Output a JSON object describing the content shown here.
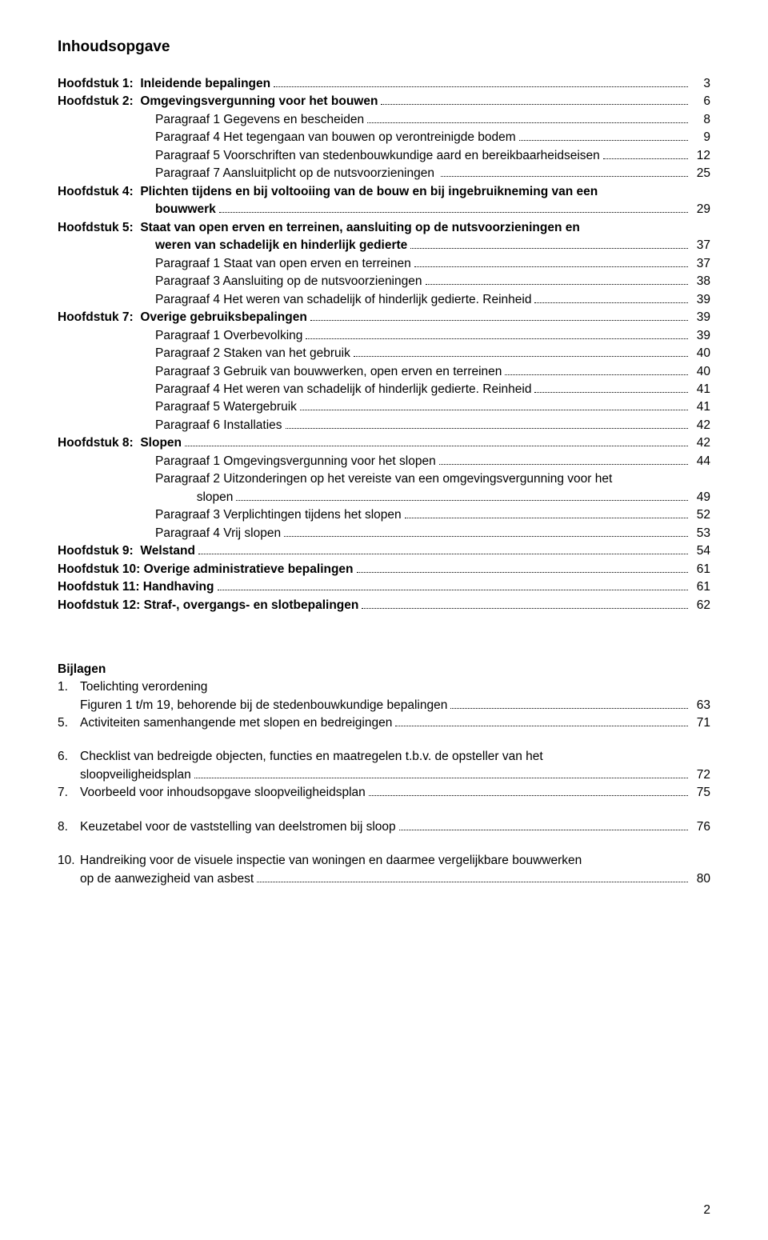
{
  "title": "Inhoudsopgave",
  "toc": [
    {
      "label": "Hoofdstuk 1:  ",
      "bold": true,
      "text": "Inleidende bepalingen",
      "tbold": true,
      "page": "3"
    },
    {
      "label": "Hoofdstuk 2:  ",
      "bold": true,
      "text": "Omgevingsvergunning voor het bouwen",
      "tbold": true,
      "page": "6"
    },
    {
      "label": "",
      "indent": true,
      "text": "Paragraaf 1 Gegevens en bescheiden",
      "page": "8"
    },
    {
      "label": "",
      "indent": true,
      "text": "Paragraaf 4 Het tegengaan van bouwen op verontreinigde bodem",
      "page": "9"
    },
    {
      "label": "",
      "indent": true,
      "text": "Paragraaf 5 Voorschriften van stedenbouwkundige aard en bereikbaarheidseisen",
      "page": "12"
    },
    {
      "label": "",
      "indent": true,
      "text": "Paragraaf 7 Aansluitplicht op de nutsvoorzieningen ",
      "page": "25"
    },
    {
      "label": "Hoofdstuk 4:  ",
      "bold": true,
      "text": "Plichten tijdens en bij voltooiing van de bouw en bij ingebruikneming van een",
      "tbold": true,
      "nowrapline": true
    },
    {
      "label": "",
      "indent": true,
      "text": "bouwwerk",
      "tbold": true,
      "page": "29"
    },
    {
      "label": "Hoofdstuk 5:  ",
      "bold": true,
      "text": "Staat van open erven en terreinen, aansluiting op de nutsvoorzieningen en",
      "tbold": true,
      "nowrapline": true
    },
    {
      "label": "",
      "indent": true,
      "text": "weren van schadelijk en hinderlijk gedierte",
      "tbold": true,
      "page": "37"
    },
    {
      "label": "",
      "indent": true,
      "text": "Paragraaf 1 Staat van open erven en terreinen",
      "page": "37"
    },
    {
      "label": "",
      "indent": true,
      "text": "Paragraaf 3 Aansluiting op de nutsvoorzieningen",
      "page": "38"
    },
    {
      "label": "",
      "indent": true,
      "text": "Paragraaf 4 Het weren van schadelijk of hinderlijk gedierte. Reinheid",
      "page": "39"
    },
    {
      "label": "Hoofdstuk 7:  ",
      "bold": true,
      "text": "Overige gebruiksbepalingen",
      "tbold": true,
      "page": "39"
    },
    {
      "label": "",
      "indent": true,
      "text": "Paragraaf 1 Overbevolking",
      "page": "39"
    },
    {
      "label": "",
      "indent": true,
      "text": "Paragraaf 2 Staken van het gebruik",
      "page": "40"
    },
    {
      "label": "",
      "indent": true,
      "text": "Paragraaf 3 Gebruik van bouwwerken, open erven en terreinen",
      "page": "40"
    },
    {
      "label": "",
      "indent": true,
      "text": "Paragraaf 4 Het weren van schadelijk of hinderlijk gedierte. Reinheid",
      "page": "41"
    },
    {
      "label": "",
      "indent": true,
      "text": "Paragraaf 5 Watergebruik",
      "page": "41"
    },
    {
      "label": "",
      "indent": true,
      "text": "Paragraaf 6 Installaties",
      "page": "42"
    },
    {
      "label": "Hoofdstuk 8:  ",
      "bold": true,
      "text": "Slopen",
      "tbold": true,
      "page": "42"
    },
    {
      "label": "",
      "indent": true,
      "text": "Paragraaf 1 Omgevingsvergunning voor het slopen",
      "page": "44"
    },
    {
      "label": "",
      "indent": true,
      "text": "Paragraaf 2 Uitzonderingen op het vereiste van een omgevingsvergunning voor het",
      "nowrapline": true
    },
    {
      "label": "",
      "indent": true,
      "text": "            slopen",
      "page": "49"
    },
    {
      "label": "",
      "indent": true,
      "text": "Paragraaf 3 Verplichtingen tijdens het slopen",
      "page": "52"
    },
    {
      "label": "",
      "indent": true,
      "text": "Paragraaf 4 Vrij slopen",
      "page": "53"
    },
    {
      "label": "Hoofdstuk 9:  ",
      "bold": true,
      "text": "Welstand",
      "tbold": true,
      "page": "54"
    },
    {
      "label": "Hoofdstuk 10: ",
      "bold": true,
      "text": "Overige administratieve bepalingen",
      "tbold": true,
      "page": "61"
    },
    {
      "label": "Hoofdstuk 11: ",
      "bold": true,
      "text": "Handhaving",
      "tbold": true,
      "page": "61"
    },
    {
      "label": "Hoofdstuk 12: ",
      "bold": true,
      "text": "Straf-, overgangs- en slotbepalingen",
      "tbold": true,
      "page": "62"
    }
  ],
  "bijlagen_title": "Bijlagen",
  "bijlagen": [
    {
      "num": "1.",
      "text": "Toelichting verordening",
      "nopagedots": true
    },
    {
      "num": "",
      "sub": true,
      "text": "Figuren 1 t/m 19, behorende bij de stedenbouwkundige bepalingen",
      "page": "63"
    },
    {
      "num": "5.",
      "text": "Activiteiten samenhangende met slopen en bedreigingen",
      "page": "71"
    },
    {
      "gap": true
    },
    {
      "num": "6.",
      "text": "Checklist van bedreigde objecten, functies en maatregelen t.b.v. de opsteller van het",
      "nopagedots": true
    },
    {
      "num": "",
      "sub": true,
      "text": "sloopveiligheidsplan",
      "page": "72"
    },
    {
      "num": "7.",
      "text": "Voorbeeld voor inhoudsopgave sloopveiligheidsplan",
      "page": "75"
    },
    {
      "gap": true
    },
    {
      "num": "8.",
      "text": "Keuzetabel voor de vaststelling van deelstromen bij sloop",
      "page": "76"
    },
    {
      "gap": true
    },
    {
      "num": "10.",
      "text": "Handreiking voor de visuele inspectie van woningen en daarmee vergelijkbare bouwwerken",
      "nopagedots": true
    },
    {
      "num": "",
      "sub": true,
      "text": "op de aanwezigheid van asbest",
      "page": "80"
    }
  ],
  "page_number": "2"
}
